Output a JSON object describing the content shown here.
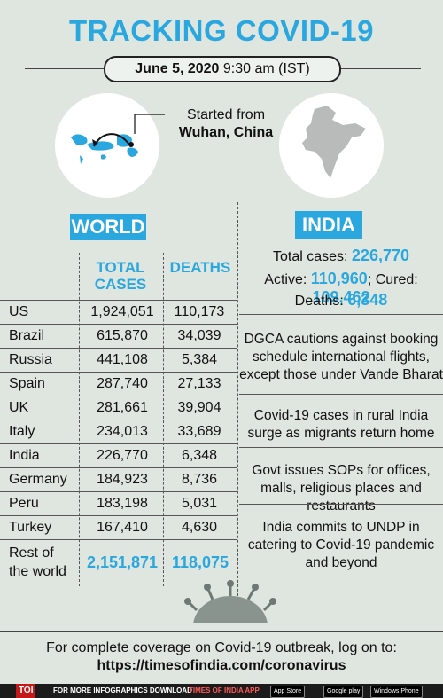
{
  "title": "TRACKING COVID-19",
  "date": {
    "bold": "June 5, 2020",
    "rest": "9:30 am (IST)"
  },
  "origin": {
    "line1": "Started from",
    "line2": "Wuhan, China"
  },
  "world": {
    "label": "WORLD",
    "col_cases": "TOTAL CASES",
    "col_deaths": "DEATHS",
    "rows": [
      {
        "country": "US",
        "cases": "1,924,051",
        "deaths": "110,173"
      },
      {
        "country": "Brazil",
        "cases": "615,870",
        "deaths": "34,039"
      },
      {
        "country": "Russia",
        "cases": "441,108",
        "deaths": "5,384"
      },
      {
        "country": "Spain",
        "cases": "287,740",
        "deaths": "27,133"
      },
      {
        "country": "UK",
        "cases": "281,661",
        "deaths": "39,904"
      },
      {
        "country": "Italy",
        "cases": "234,013",
        "deaths": "33,689"
      },
      {
        "country": "India",
        "cases": "226,770",
        "deaths": "6,348"
      },
      {
        "country": "Germany",
        "cases": "184,923",
        "deaths": "8,736"
      },
      {
        "country": "Peru",
        "cases": "183,198",
        "deaths": "5,031"
      },
      {
        "country": "Turkey",
        "cases": "167,410",
        "deaths": "4,630"
      }
    ],
    "rest": {
      "line1": "Rest of",
      "line2": "the world",
      "cases": "2,151,871",
      "deaths": "118,075"
    }
  },
  "india": {
    "label": "INDIA",
    "total_label": "Total cases:",
    "total": "226,770",
    "active_label": "Active:",
    "active": "110,960",
    "cured_label": "; Cured:",
    "cured": "109,462",
    "deaths_label": "Deaths:",
    "deaths": "6,348"
  },
  "news": [
    "DGCA cautions against booking schedule international flights, except those under Vande Bharat",
    "Covid-19 cases in rural India surge as migrants return home",
    "Govt issues SOPs for offices, malls, religious places and restaurants",
    "India commits to UNDP in catering to Covid-19 pandemic and beyond"
  ],
  "footer": {
    "line1": "For complete coverage on Covid-19 outbreak, log on to:",
    "url": "https://timesofindia.com/coronavirus",
    "brand": "TOI",
    "bar_text": "FOR MORE INFOGRAPHICS DOWNLOAD",
    "app": "TIMES OF INDIA APP",
    "app_store": "App Store",
    "google_play": "Google play",
    "windows_phone": "Windows Phone"
  },
  "colors": {
    "accent": "#2aa7df",
    "background": "#dfe6e0",
    "brand_red": "#c21a1a"
  }
}
